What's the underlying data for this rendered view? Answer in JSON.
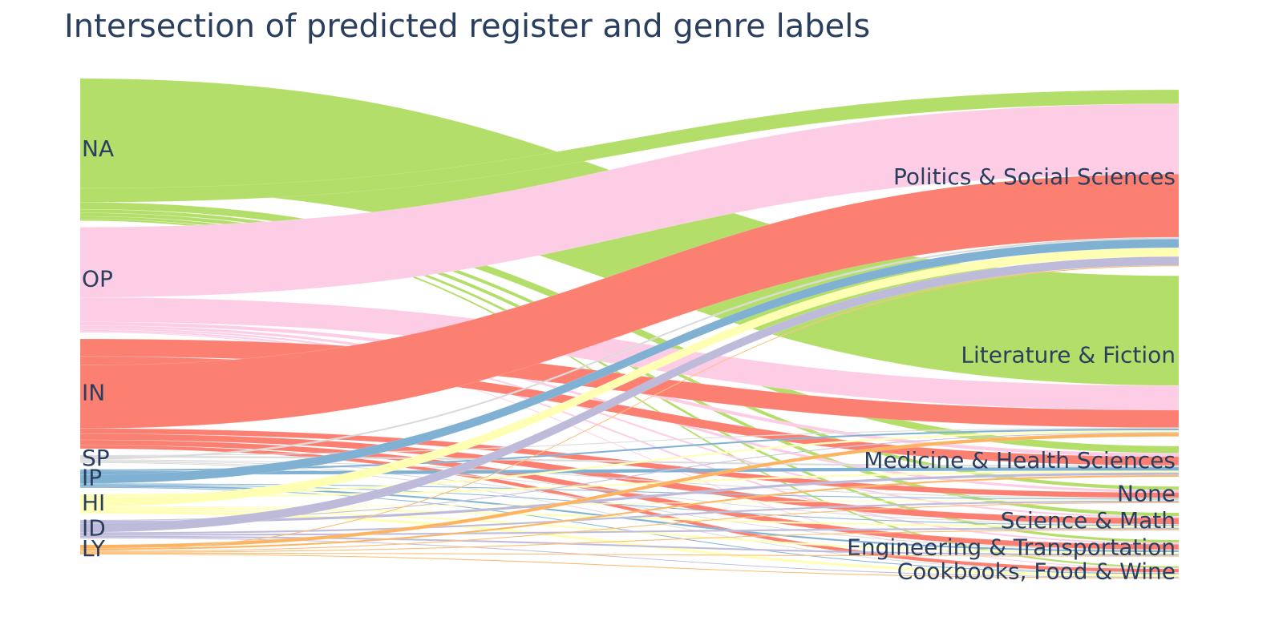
{
  "chart_data": {
    "type": "sankey",
    "title": "Intersection of predicted register and genre labels",
    "source_nodes": [
      {
        "label": "NA",
        "color": "#b3de69"
      },
      {
        "label": "OP",
        "color": "#fccde5"
      },
      {
        "label": "IN",
        "color": "#fb8072"
      },
      {
        "label": "SP",
        "color": "#d9d9d9"
      },
      {
        "label": "IP",
        "color": "#80b1d3"
      },
      {
        "label": "HI",
        "color": "#ffffb3"
      },
      {
        "label": "ID",
        "color": "#bebada"
      },
      {
        "label": "LY",
        "color": "#fdb462"
      }
    ],
    "target_nodes": [
      {
        "label": "Politics & Social Sciences"
      },
      {
        "label": "Literature & Fiction"
      },
      {
        "label": "Medicine & Health Sciences"
      },
      {
        "label": "None"
      },
      {
        "label": "Science & Math"
      },
      {
        "label": "Engineering & Transportation"
      },
      {
        "label": "Cookbooks, Food & Wine"
      }
    ],
    "flows": {
      "NA": [
        [
          1,
          125
        ],
        [
          0,
          16
        ],
        [
          2,
          8
        ],
        [
          3,
          4
        ],
        [
          4,
          4
        ],
        [
          5,
          3
        ],
        [
          6,
          2
        ]
      ],
      "OP": [
        [
          0,
          80
        ],
        [
          1,
          28
        ],
        [
          2,
          4
        ],
        [
          3,
          3
        ],
        [
          4,
          2
        ],
        [
          5,
          2
        ],
        [
          6,
          1
        ]
      ],
      "IN": [
        [
          1,
          20
        ],
        [
          2,
          10
        ],
        [
          0,
          72
        ],
        [
          3,
          6
        ],
        [
          4,
          7
        ],
        [
          5,
          6
        ],
        [
          6,
          4
        ]
      ],
      "SP": [
        [
          1,
          1
        ],
        [
          2,
          2
        ],
        [
          0,
          2
        ],
        [
          3,
          1
        ],
        [
          4,
          1
        ],
        [
          5,
          1
        ],
        [
          6,
          1
        ]
      ],
      "IP": [
        [
          1,
          2
        ],
        [
          2,
          4
        ],
        [
          0,
          10
        ],
        [
          3,
          1
        ],
        [
          4,
          1
        ],
        [
          5,
          2
        ],
        [
          6,
          1
        ]
      ],
      "HI": [
        [
          1,
          2
        ],
        [
          2,
          2
        ],
        [
          0,
          10
        ],
        [
          3,
          1
        ],
        [
          4,
          2
        ],
        [
          5,
          2
        ],
        [
          6,
          3
        ]
      ],
      "ID": [
        [
          1,
          1
        ],
        [
          2,
          3
        ],
        [
          0,
          10
        ],
        [
          3,
          2
        ],
        [
          4,
          2
        ],
        [
          5,
          2
        ],
        [
          6,
          1
        ]
      ],
      "LY": [
        [
          1,
          4
        ],
        [
          2,
          2
        ],
        [
          0,
          1
        ],
        [
          3,
          1
        ],
        [
          4,
          1
        ],
        [
          5,
          1
        ],
        [
          6,
          1
        ]
      ]
    }
  }
}
